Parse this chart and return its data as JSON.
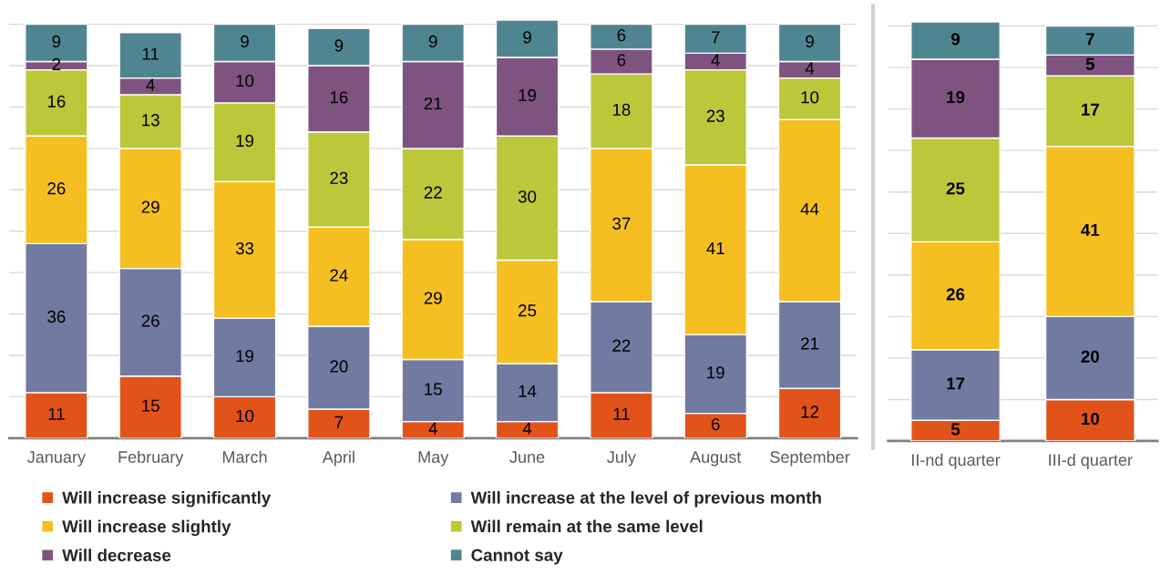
{
  "chart_data": [
    {
      "type": "bar",
      "stacked": true,
      "categories": [
        "January",
        "February",
        "March",
        "April",
        "May",
        "June",
        "July",
        "August",
        "September"
      ],
      "series": [
        {
          "name": "Will increase significantly",
          "color": "#e2531a",
          "values": [
            11,
            15,
            10,
            7,
            4,
            4,
            11,
            6,
            12
          ]
        },
        {
          "name": "Will increase at the level of previous month",
          "color": "#717aa0",
          "values": [
            36,
            26,
            19,
            20,
            15,
            14,
            22,
            19,
            21
          ]
        },
        {
          "name": "Will increase slightly",
          "color": "#f5bf22",
          "values": [
            26,
            29,
            33,
            24,
            29,
            25,
            37,
            41,
            44
          ]
        },
        {
          "name": "Will remain at the same level",
          "color": "#bcc73a",
          "values": [
            16,
            13,
            19,
            23,
            22,
            30,
            18,
            23,
            10
          ]
        },
        {
          "name": "Will decrease",
          "color": "#7f5380",
          "values": [
            2,
            4,
            10,
            16,
            21,
            19,
            6,
            4,
            4
          ]
        },
        {
          "name": "Cannot say",
          "color": "#4f8591",
          "values": [
            9,
            11,
            9,
            9,
            9,
            9,
            6,
            7,
            9
          ]
        }
      ],
      "ylim": [
        0,
        101
      ],
      "yticks": [
        {
          "value": 0,
          "label": null
        },
        {
          "value": 10,
          "label": null
        },
        {
          "value": 20,
          "label": null
        },
        {
          "value": 30,
          "label": null
        },
        {
          "value": 40,
          "label": null
        },
        {
          "value": 50,
          "label": null
        },
        {
          "value": 60,
          "label": null
        },
        {
          "value": 70,
          "label": null
        },
        {
          "value": 80,
          "label": null
        },
        {
          "value": 90,
          "label": null
        },
        {
          "value": 100,
          "label": null
        }
      ],
      "tick_labels": "x",
      "grid": "y",
      "data_labels": true,
      "legend": "bottom"
    },
    {
      "type": "bar",
      "stacked": true,
      "categories": [
        "II-nd quarter",
        "III-d quarter"
      ],
      "series": [
        {
          "color": "#e2531a",
          "values": [
            5,
            10
          ]
        },
        {
          "color": "#717aa0",
          "values": [
            17,
            20
          ]
        },
        {
          "color": "#f5bf22",
          "values": [
            26,
            41
          ]
        },
        {
          "color": "#bcc73a",
          "values": [
            25,
            17
          ]
        },
        {
          "color": "#7f5380",
          "values": [
            19,
            5
          ]
        },
        {
          "color": "#4f8591",
          "values": [
            9,
            7
          ]
        }
      ],
      "ylim": [
        0,
        101
      ],
      "yticks": [
        {
          "value": 0,
          "label": null
        },
        {
          "value": 10,
          "label": null
        },
        {
          "value": 20,
          "label": null
        },
        {
          "value": 30,
          "label": null
        },
        {
          "value": 40,
          "label": null
        },
        {
          "value": 50,
          "label": null
        },
        {
          "value": 60,
          "label": null
        },
        {
          "value": 70,
          "label": null
        },
        {
          "value": 80,
          "label": null
        },
        {
          "value": 90,
          "label": null
        },
        {
          "value": 100,
          "label": null
        }
      ],
      "tick_labels": "x",
      "grid": "y",
      "data_labels": true
    }
  ]
}
